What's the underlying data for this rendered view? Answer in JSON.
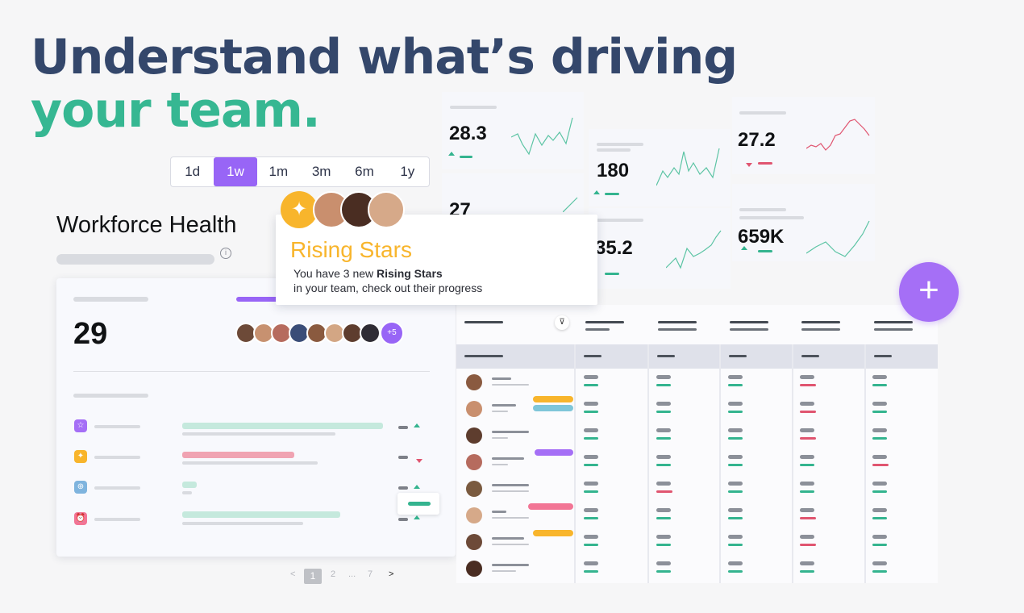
{
  "hero": {
    "line1": "Understand what’s driving",
    "line2": "your team."
  },
  "timeframes": {
    "options": [
      "1d",
      "1w",
      "1m",
      "3m",
      "6m",
      "1y"
    ],
    "selected": "1w"
  },
  "workforce": {
    "title": "Workforce Health",
    "count": "29",
    "extra_members": "+5"
  },
  "metrics": [
    "28.3",
    "180",
    "27.2",
    "27",
    "35.2",
    "659K"
  ],
  "rising_stars": {
    "title": "Rising Stars",
    "text_prefix": "You have 3 new ",
    "text_bold": "Rising Stars",
    "text_line2": "in your team, check out their progress"
  },
  "pagination": {
    "prev": "<",
    "current": "1",
    "p2": "2",
    "ellipsis": "...",
    "last": "7",
    "next": ">"
  },
  "add_button": "+",
  "colors": {
    "accent": "#9865f6",
    "teal": "#36b792",
    "navy": "#34476b",
    "gold": "#f8b52c",
    "red": "#e05570"
  }
}
